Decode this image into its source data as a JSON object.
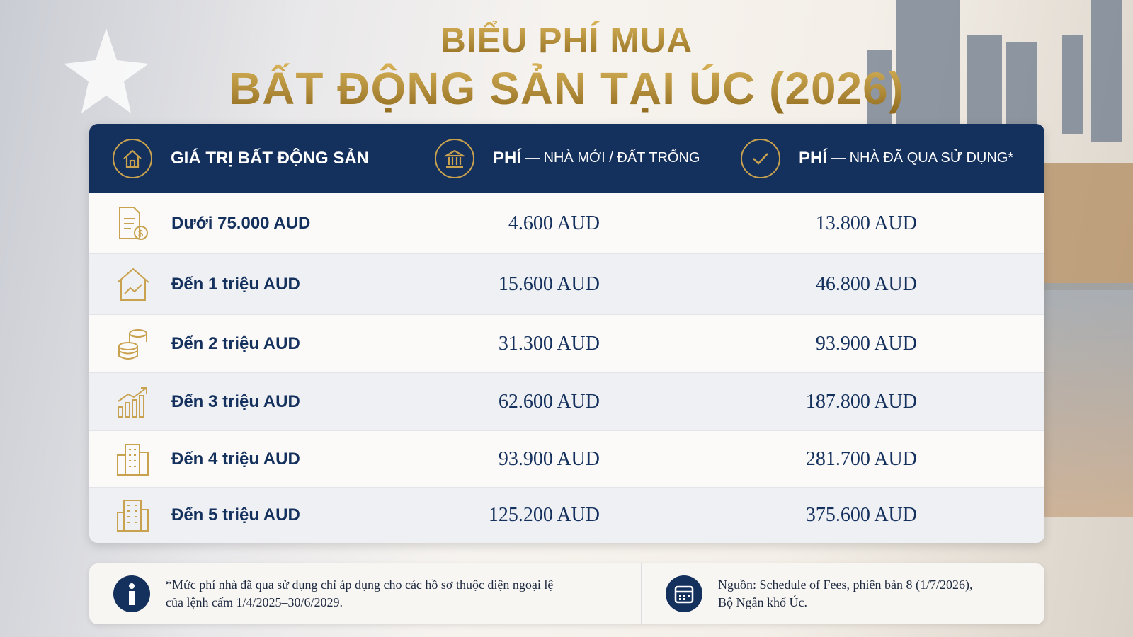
{
  "title": {
    "line1": "BIỂU PHÍ MUA",
    "line2": "BẤT ĐỘNG SẢN TẠI ÚC (2026)"
  },
  "table": {
    "headers": [
      {
        "main": "GIÁ TRỊ BẤT ĐỘNG SẢN"
      },
      {
        "main": "PHÍ",
        "sub": "— NHÀ MỚI / ĐẤT TRỐNG"
      },
      {
        "main": "PHÍ",
        "sub": "— NHÀ ĐÃ QUA SỬ DỤNG*"
      }
    ],
    "rows": [
      [
        "Dưới 75.000 AUD",
        "4.600 AUD",
        "13.800 AUD"
      ],
      [
        "Đến 1 triệu AUD",
        "15.600 AUD",
        "46.800 AUD"
      ],
      [
        "Đến 2 triệu AUD",
        "31.300 AUD",
        "93.900 AUD"
      ],
      [
        "Đến 3 triệu AUD",
        "62.600 AUD",
        "187.800 AUD"
      ],
      [
        "Đến 4 triệu AUD",
        "93.900 AUD",
        "281.700 AUD"
      ],
      [
        "Đến 5 triệu AUD",
        "125.200 AUD",
        "375.600 AUD"
      ]
    ]
  },
  "notes": {
    "footnote": [
      "*Mức phí nhà đã qua sử dụng chỉ áp dụng cho các hồ sơ thuộc diện ngoại lệ",
      "của lệnh cấm 1/4/2025–30/6/2029."
    ],
    "source": [
      "Nguồn: Schedule of Fees, phiên bản 8 (1/7/2026),",
      "Bộ Ngân khố Úc."
    ]
  }
}
